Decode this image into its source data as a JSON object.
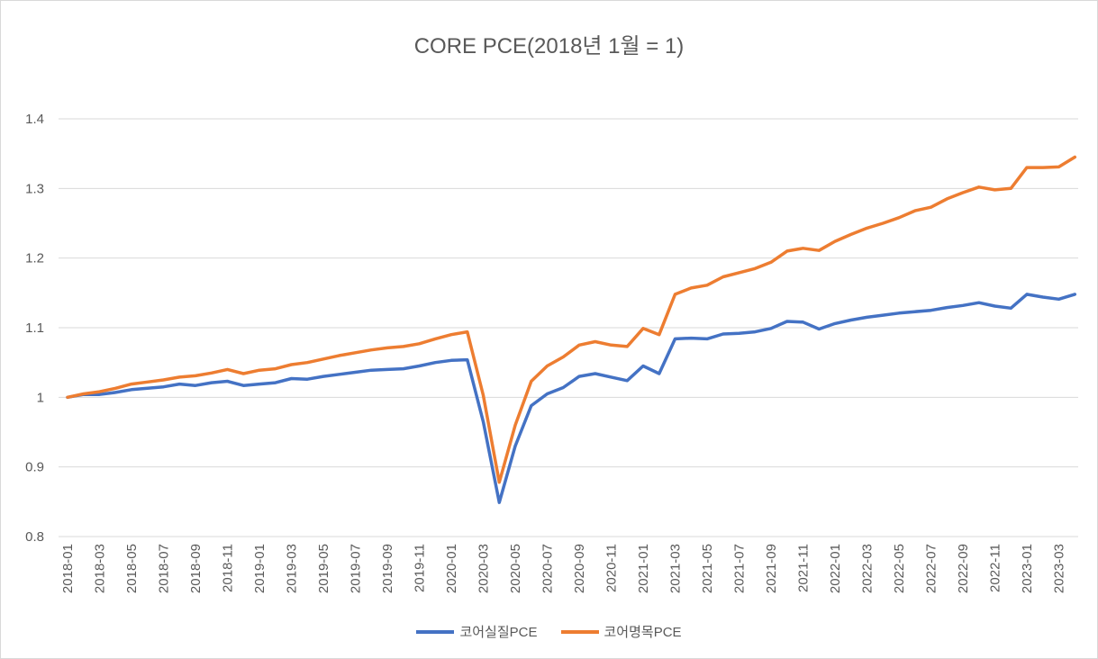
{
  "chart_data": {
    "type": "line",
    "title": "CORE PCE(2018년 1월 = 1)",
    "xlabel": "",
    "ylabel": "",
    "ylim": [
      0.8,
      1.4
    ],
    "yticks": [
      "0.8",
      "0.9",
      "1",
      "1.1",
      "1.2",
      "1.3",
      "1.4"
    ],
    "x": [
      "2018-01",
      "2018-02",
      "2018-03",
      "2018-04",
      "2018-05",
      "2018-06",
      "2018-07",
      "2018-08",
      "2018-09",
      "2018-10",
      "2018-11",
      "2018-12",
      "2019-01",
      "2019-02",
      "2019-03",
      "2019-04",
      "2019-05",
      "2019-06",
      "2019-07",
      "2019-08",
      "2019-09",
      "2019-10",
      "2019-11",
      "2019-12",
      "2020-01",
      "2020-02",
      "2020-03",
      "2020-04",
      "2020-05",
      "2020-06",
      "2020-07",
      "2020-08",
      "2020-09",
      "2020-10",
      "2020-11",
      "2020-12",
      "2021-01",
      "2021-02",
      "2021-03",
      "2021-04",
      "2021-05",
      "2021-06",
      "2021-07",
      "2021-08",
      "2021-09",
      "2021-10",
      "2021-11",
      "2021-12",
      "2022-01",
      "2022-02",
      "2022-03",
      "2022-04",
      "2022-05",
      "2022-06",
      "2022-07",
      "2022-08",
      "2022-09",
      "2022-10",
      "2022-11",
      "2022-12",
      "2023-01",
      "2023-02",
      "2023-03",
      "2023-04"
    ],
    "xtick_labels": [
      "2018-01",
      "2018-03",
      "2018-05",
      "2018-07",
      "2018-09",
      "2018-11",
      "2019-01",
      "2019-03",
      "2019-05",
      "2019-07",
      "2019-09",
      "2019-11",
      "2020-01",
      "2020-03",
      "2020-05",
      "2020-07",
      "2020-09",
      "2020-11",
      "2021-01",
      "2021-03",
      "2021-05",
      "2021-07",
      "2021-09",
      "2021-11",
      "2022-01",
      "2022-03",
      "2022-05",
      "2022-07",
      "2022-09",
      "2022-11",
      "2023-01",
      "2023-03"
    ],
    "legend_position": "bottom",
    "grid": true,
    "series": [
      {
        "name": "코어실질PCE",
        "color": "#4472C4",
        "values": [
          1.0,
          1.004,
          1.004,
          1.007,
          1.011,
          1.013,
          1.015,
          1.019,
          1.017,
          1.021,
          1.023,
          1.017,
          1.019,
          1.021,
          1.027,
          1.026,
          1.03,
          1.033,
          1.036,
          1.039,
          1.04,
          1.041,
          1.045,
          1.05,
          1.053,
          1.054,
          0.965,
          0.849,
          0.93,
          0.988,
          1.005,
          1.014,
          1.03,
          1.034,
          1.029,
          1.024,
          1.045,
          1.034,
          1.084,
          1.085,
          1.084,
          1.091,
          1.092,
          1.094,
          1.099,
          1.109,
          1.108,
          1.098,
          1.106,
          1.111,
          1.115,
          1.118,
          1.121,
          1.123,
          1.125,
          1.129,
          1.132,
          1.136,
          1.131,
          1.128,
          1.148,
          1.144,
          1.141,
          1.148
        ]
      },
      {
        "name": "코어명목PCE",
        "color": "#ED7D31",
        "values": [
          1.0,
          1.005,
          1.008,
          1.013,
          1.019,
          1.022,
          1.025,
          1.029,
          1.031,
          1.035,
          1.04,
          1.034,
          1.039,
          1.041,
          1.047,
          1.05,
          1.055,
          1.06,
          1.064,
          1.068,
          1.071,
          1.073,
          1.077,
          1.084,
          1.09,
          1.094,
          1.003,
          0.878,
          0.96,
          1.023,
          1.045,
          1.058,
          1.075,
          1.08,
          1.075,
          1.073,
          1.099,
          1.09,
          1.148,
          1.157,
          1.161,
          1.173,
          1.179,
          1.185,
          1.194,
          1.21,
          1.214,
          1.211,
          1.224,
          1.234,
          1.243,
          1.25,
          1.258,
          1.268,
          1.273,
          1.285,
          1.294,
          1.302,
          1.298,
          1.3,
          1.33,
          1.33,
          1.331,
          1.345
        ]
      }
    ]
  }
}
